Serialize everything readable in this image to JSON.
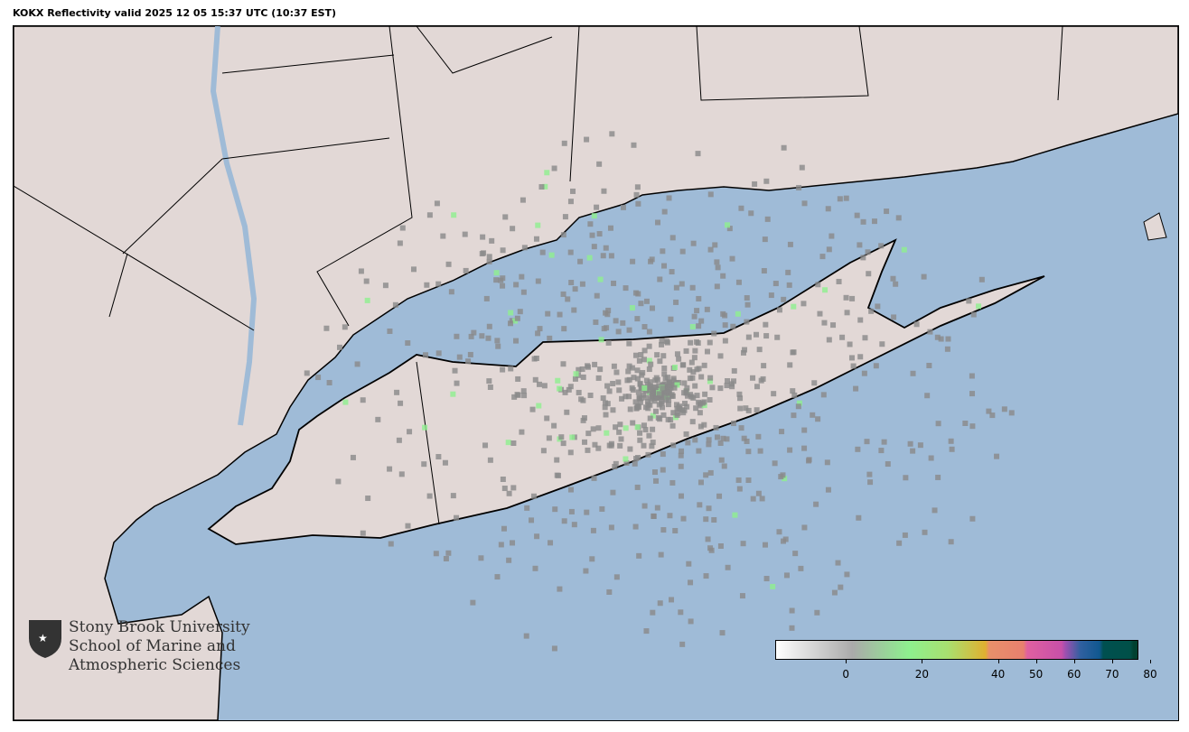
{
  "title": "KOKX Reflectivity valid 2025 12 05 15:37 UTC (10:37 EST)",
  "colors": {
    "ocean": "#9fbbd7",
    "land": "#e2d8d6",
    "border": "#000000",
    "echo": "#8a8a8a",
    "echo_green": "#8ef08e"
  },
  "radar_site": "KOKX",
  "logo": {
    "line1": "Stony Brook University",
    "line2": "School of Marine and",
    "line3": "Atmospheric Sciences",
    "icon": "shield-star-icon"
  },
  "colorbar": {
    "min": -15,
    "max": 80,
    "ticks": [
      "0",
      "20",
      "40",
      "50",
      "60",
      "70",
      "80"
    ],
    "stops": [
      [
        -15,
        "#ffffff"
      ],
      [
        5,
        "#aaaaaa"
      ],
      [
        20,
        "#8ef08e"
      ],
      [
        30,
        "#a8e070"
      ],
      [
        40,
        "#e0b030"
      ],
      [
        41,
        "#e8906a"
      ],
      [
        50,
        "#e8806e"
      ],
      [
        51,
        "#e060a0"
      ],
      [
        60,
        "#c850a8"
      ],
      [
        61,
        "#a050b0"
      ],
      [
        65,
        "#3060a0"
      ],
      [
        70,
        "#105890"
      ],
      [
        71,
        "#005050"
      ],
      [
        78,
        "#005048"
      ],
      [
        79,
        "#004030"
      ],
      [
        80,
        "#004030"
      ]
    ]
  }
}
